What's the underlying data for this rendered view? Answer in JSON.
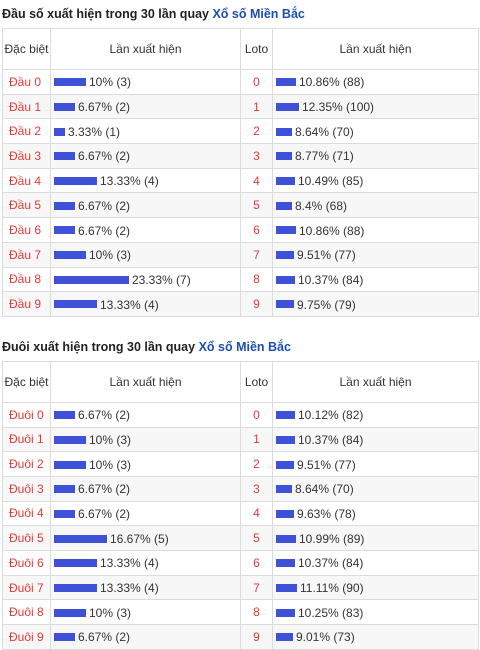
{
  "dau": {
    "title_prefix": "Đầu số xuất hiện trong 30 lần quay ",
    "title_link": "Xổ số Miền Bắc",
    "headers": {
      "col1": "Đặc biệt",
      "col2": "Lần xuất hiện",
      "col3": "Loto",
      "col4": "Lần xuất hiện"
    },
    "rows": [
      {
        "label": "Đầu 0",
        "pct": 10,
        "text": "10% (3)",
        "loto": "0",
        "lpct": 10.86,
        "ltext": "10.86% (88)"
      },
      {
        "label": "Đầu 1",
        "pct": 6.67,
        "text": "6.67% (2)",
        "loto": "1",
        "lpct": 12.35,
        "ltext": "12.35% (100)"
      },
      {
        "label": "Đầu 2",
        "pct": 3.33,
        "text": "3.33% (1)",
        "loto": "2",
        "lpct": 8.64,
        "ltext": "8.64% (70)"
      },
      {
        "label": "Đầu 3",
        "pct": 6.67,
        "text": "6.67% (2)",
        "loto": "3",
        "lpct": 8.77,
        "ltext": "8.77% (71)"
      },
      {
        "label": "Đầu 4",
        "pct": 13.33,
        "text": "13.33% (4)",
        "loto": "4",
        "lpct": 10.49,
        "ltext": "10.49% (85)"
      },
      {
        "label": "Đầu 5",
        "pct": 6.67,
        "text": "6.67% (2)",
        "loto": "5",
        "lpct": 8.4,
        "ltext": "8.4% (68)"
      },
      {
        "label": "Đầu 6",
        "pct": 6.67,
        "text": "6.67% (2)",
        "loto": "6",
        "lpct": 10.86,
        "ltext": "10.86% (88)"
      },
      {
        "label": "Đầu 7",
        "pct": 10,
        "text": "10% (3)",
        "loto": "7",
        "lpct": 9.51,
        "ltext": "9.51% (77)"
      },
      {
        "label": "Đầu 8",
        "pct": 23.33,
        "text": "23.33% (7)",
        "loto": "8",
        "lpct": 10.37,
        "ltext": "10.37% (84)"
      },
      {
        "label": "Đầu 9",
        "pct": 13.33,
        "text": "13.33% (4)",
        "loto": "9",
        "lpct": 9.75,
        "ltext": "9.75% (79)"
      }
    ]
  },
  "duoi": {
    "title_prefix": "Đuôi xuất hiện trong 30 lần quay ",
    "title_link": "Xổ số Miền Bắc",
    "headers": {
      "col1": "Đặc biệt",
      "col2": "Lần xuất hiện",
      "col3": "Loto",
      "col4": "Lần xuất hiện"
    },
    "rows": [
      {
        "label": "Đuôi 0",
        "pct": 6.67,
        "text": "6.67% (2)",
        "loto": "0",
        "lpct": 10.12,
        "ltext": "10.12% (82)"
      },
      {
        "label": "Đuôi 1",
        "pct": 10,
        "text": "10% (3)",
        "loto": "1",
        "lpct": 10.37,
        "ltext": "10.37% (84)"
      },
      {
        "label": "Đuôi 2",
        "pct": 10,
        "text": "10% (3)",
        "loto": "2",
        "lpct": 9.51,
        "ltext": "9.51% (77)"
      },
      {
        "label": "Đuôi 3",
        "pct": 6.67,
        "text": "6.67% (2)",
        "loto": "3",
        "lpct": 8.64,
        "ltext": "8.64% (70)"
      },
      {
        "label": "Đuôi 4",
        "pct": 6.67,
        "text": "6.67% (2)",
        "loto": "4",
        "lpct": 9.63,
        "ltext": "9.63% (78)"
      },
      {
        "label": "Đuôi 5",
        "pct": 16.67,
        "text": "16.67% (5)",
        "loto": "5",
        "lpct": 10.99,
        "ltext": "10.99% (89)"
      },
      {
        "label": "Đuôi 6",
        "pct": 13.33,
        "text": "13.33% (4)",
        "loto": "6",
        "lpct": 10.37,
        "ltext": "10.37% (84)"
      },
      {
        "label": "Đuôi 7",
        "pct": 13.33,
        "text": "13.33% (4)",
        "loto": "7",
        "lpct": 11.11,
        "ltext": "11.11% (90)"
      },
      {
        "label": "Đuôi 8",
        "pct": 10,
        "text": "10% (3)",
        "loto": "8",
        "lpct": 10.25,
        "ltext": "10.25% (83)"
      },
      {
        "label": "Đuôi 9",
        "pct": 6.67,
        "text": "6.67% (2)",
        "loto": "9",
        "lpct": 9.01,
        "ltext": "9.01% (73)"
      }
    ]
  },
  "colors": {
    "bar": "#3f51d6",
    "accent_red": "#e53935",
    "link_blue": "#1a4fb3"
  }
}
